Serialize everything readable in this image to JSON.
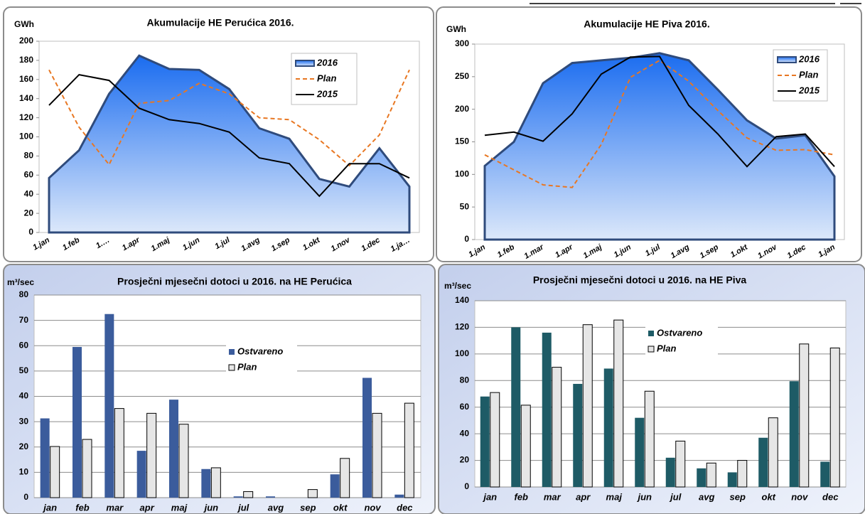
{
  "chart_data": [
    {
      "type": "line",
      "title": "Akumulacije  HE Perućica 2016.",
      "y_label": "GWh",
      "categories": [
        "1.jan",
        "1.feb",
        "1.…",
        "1.apr",
        "1.maj",
        "1.jun",
        "1.jul",
        "1.avg",
        "1.sep",
        "1.okt",
        "1.nov",
        "1.dec",
        "1.ja…"
      ],
      "series": [
        {
          "name": "2016",
          "style": "area",
          "color": "#2f4b7c",
          "values": [
            57,
            86,
            145,
            185,
            171,
            170,
            150,
            109,
            98,
            56,
            48,
            88,
            48
          ]
        },
        {
          "name": "Plan",
          "style": "dashed",
          "color": "#e87722",
          "values": [
            170,
            110,
            71,
            135,
            138,
            156,
            145,
            120,
            118,
            97,
            70,
            102,
            170
          ]
        },
        {
          "name": "2015",
          "style": "solid",
          "color": "#000000",
          "values": [
            133,
            165,
            159,
            130,
            118,
            114,
            105,
            78,
            72,
            38,
            72,
            72,
            57
          ]
        }
      ],
      "ylim": [
        0,
        200
      ],
      "yticks": [
        0,
        20,
        40,
        60,
        80,
        100,
        120,
        140,
        160,
        180,
        200
      ],
      "grid": false,
      "legend": "upper right"
    },
    {
      "type": "line",
      "title": "Akumulacije  HE Piva 2016.",
      "y_label": "GWh",
      "categories": [
        "1.jan",
        "1.feb",
        "1.mar",
        "1.apr",
        "1.maj",
        "1.jun",
        "1.jul",
        "1.avg",
        "1.sep",
        "1.okt",
        "1.nov",
        "1.dec",
        "1.jan"
      ],
      "series": [
        {
          "name": "2016",
          "style": "area",
          "color": "#2f4b7c",
          "values": [
            113,
            150,
            240,
            271,
            275,
            279,
            286,
            275,
            230,
            183,
            155,
            160,
            97
          ]
        },
        {
          "name": "Plan",
          "style": "dashed",
          "color": "#e87722",
          "values": [
            130,
            107,
            84,
            80,
            146,
            249,
            275,
            243,
            198,
            156,
            137,
            138,
            130
          ]
        },
        {
          "name": "2015",
          "style": "solid",
          "color": "#000000",
          "values": [
            160,
            165,
            151,
            193,
            254,
            280,
            281,
            206,
            162,
            112,
            158,
            162,
            112
          ]
        }
      ],
      "ylim": [
        0,
        300
      ],
      "yticks": [
        0,
        50,
        100,
        150,
        200,
        250,
        300
      ],
      "grid": false,
      "legend": "upper right"
    },
    {
      "type": "bar",
      "title": "Prosječni mjesečni dotoci u 2016. na HE Perućica",
      "y_label": "m³/sec",
      "categories": [
        "jan",
        "feb",
        "mar",
        "apr",
        "maj",
        "jun",
        "jul",
        "avg",
        "sep",
        "okt",
        "nov",
        "dec"
      ],
      "series": [
        {
          "name": "Ostvareno",
          "color": "#3b5c9c",
          "values": [
            31.3,
            59.5,
            72.5,
            18.5,
            38.7,
            11.3,
            0.5,
            0.5,
            0,
            9.2,
            47.3,
            1.2
          ]
        },
        {
          "name": "Plan",
          "color": "#e6e6e6",
          "values": [
            20.2,
            23,
            35.2,
            33.3,
            29,
            11.8,
            2.4,
            0,
            3.2,
            15.5,
            33.3,
            37.3
          ]
        }
      ],
      "ylim": [
        0,
        80
      ],
      "yticks": [
        0,
        10,
        20,
        30,
        40,
        50,
        60,
        70,
        80
      ],
      "grid": true,
      "legend": "upper center"
    },
    {
      "type": "bar",
      "title": "Prosječni mjesečni dotoci u 2016. na HE Piva",
      "y_label": "m³/sec",
      "categories": [
        "jan",
        "feb",
        "mar",
        "apr",
        "maj",
        "jun",
        "jul",
        "avg",
        "sep",
        "okt",
        "nov",
        "dec"
      ],
      "series": [
        {
          "name": "Ostvareno",
          "color": "#1e5b66",
          "values": [
            68,
            120,
            116,
            77.5,
            89,
            52,
            22,
            14,
            11,
            37,
            79.5,
            19
          ]
        },
        {
          "name": "Plan",
          "color": "#e6e6e6",
          "values": [
            71,
            61.5,
            90,
            122,
            125.5,
            72,
            34.5,
            18,
            20,
            52,
            107.5,
            104.5
          ]
        }
      ],
      "ylim": [
        0,
        140
      ],
      "yticks": [
        0,
        20,
        40,
        60,
        80,
        100,
        120,
        140
      ],
      "grid": true,
      "legend": "upper center"
    }
  ]
}
